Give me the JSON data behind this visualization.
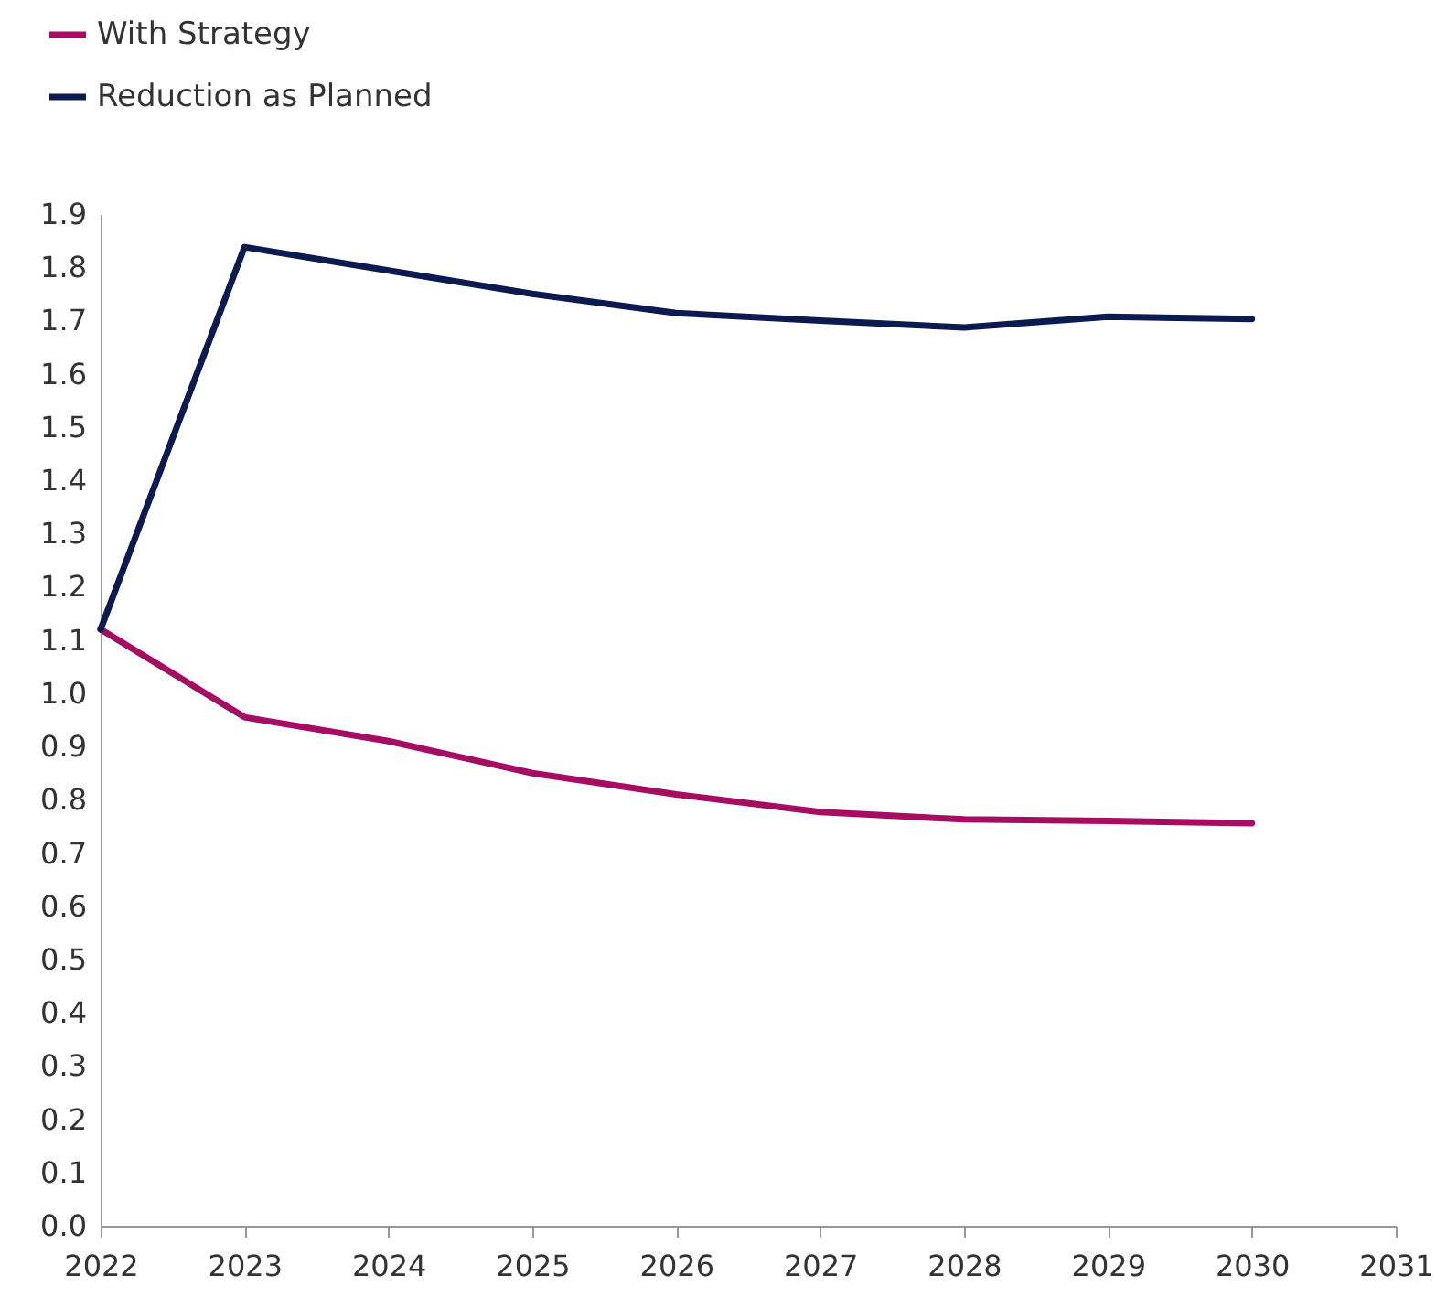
{
  "chart_data": {
    "type": "line",
    "x": [
      2022,
      2023,
      2024,
      2025,
      2026,
      2027,
      2028,
      2029,
      2030
    ],
    "series": [
      {
        "name": "With Strategy",
        "color": "#a50d62",
        "values": [
          1.12,
          0.955,
          0.91,
          0.85,
          0.81,
          0.777,
          0.763,
          0.76,
          0.756
        ]
      },
      {
        "name": "Reduction as Planned",
        "color": "#0b1a4f",
        "values": [
          1.12,
          1.838,
          1.794,
          1.75,
          1.714,
          1.7,
          1.687,
          1.707,
          1.703
        ]
      }
    ],
    "xlim": [
      2022,
      2031
    ],
    "xticks": [
      2022,
      2023,
      2024,
      2025,
      2026,
      2027,
      2028,
      2029,
      2030,
      2031
    ],
    "ylim": [
      0,
      1.9
    ],
    "yticks": [
      {
        "value": 0,
        "label": "0.0"
      },
      0.1,
      0.2,
      0.3,
      0.4,
      0.5,
      0.6,
      0.7,
      0.8,
      0.9,
      {
        "value": 1,
        "label": "1.0"
      },
      1.1,
      1.2,
      1.3,
      1.4,
      1.5,
      1.6,
      1.7,
      1.8,
      1.9
    ],
    "grid": false,
    "legend": "top left",
    "marker": "none",
    "line_style": "solid"
  }
}
